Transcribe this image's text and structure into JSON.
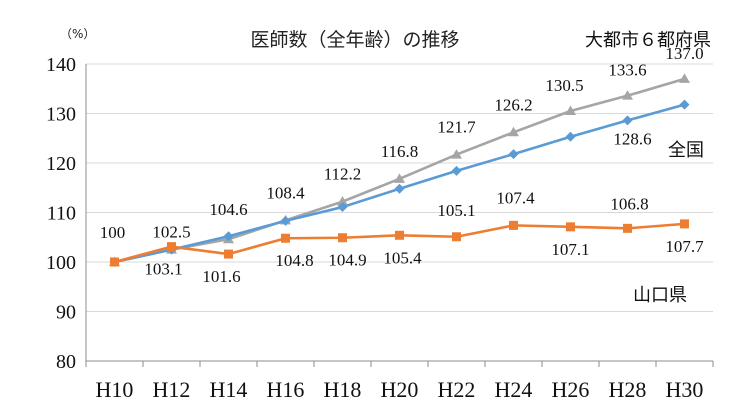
{
  "chart_data": {
    "type": "line",
    "title": "医師数（全年齢）の推移",
    "unit_label": "（%）",
    "categories": [
      "H10",
      "H12",
      "H14",
      "H16",
      "H18",
      "H20",
      "H22",
      "H24",
      "H26",
      "H28",
      "H30"
    ],
    "ylim": [
      80,
      140
    ],
    "yticks": [
      80,
      90,
      100,
      110,
      120,
      130,
      140
    ],
    "grid": "horizontal",
    "series": [
      {
        "name": "大都市６都府県",
        "color": "#a5a5a5",
        "marker": "triangle",
        "values": [
          100,
          102.5,
          104.6,
          108.4,
          112.2,
          116.8,
          121.7,
          126.2,
          130.5,
          133.6,
          137.0
        ],
        "labels": [
          "",
          "",
          "104.6",
          "108.4",
          "112.2",
          "116.8",
          "121.7",
          "126.2",
          "130.5",
          "133.6",
          "137.0"
        ]
      },
      {
        "name": "全国",
        "color": "#5b9bd5",
        "marker": "diamond",
        "values": [
          100,
          102.5,
          105.2,
          108.3,
          111.1,
          114.8,
          118.4,
          121.8,
          125.3,
          128.6,
          131.8
        ],
        "labels": [
          "",
          "102.5",
          "",
          "",
          "",
          "",
          "",
          "",
          "",
          "128.6",
          ""
        ]
      },
      {
        "name": "山口県",
        "color": "#ed7d31",
        "marker": "square",
        "values": [
          100,
          103.1,
          101.6,
          104.8,
          104.9,
          105.4,
          105.1,
          107.4,
          107.1,
          106.8,
          107.7
        ],
        "labels": [
          "100",
          "103.1",
          "101.6",
          "104.8",
          "104.9",
          "105.4",
          "105.1",
          "107.4",
          "107.1",
          "106.8",
          "107.7"
        ]
      }
    ]
  }
}
